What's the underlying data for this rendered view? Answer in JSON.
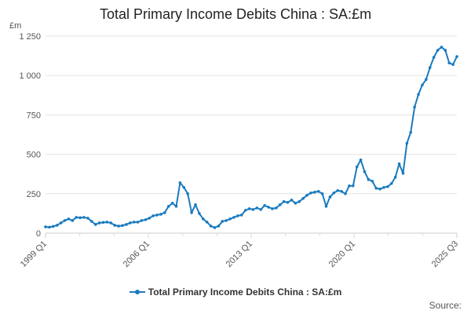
{
  "chart_data": {
    "type": "line",
    "title": "Total Primary Income Debits China : SA:£m",
    "unit": "£m",
    "ylim": [
      0,
      1250
    ],
    "yticks": [
      0,
      250,
      500,
      750,
      1000,
      1250
    ],
    "ytick_labels": [
      "0",
      "250",
      "500",
      "750",
      "1 000",
      "1 250"
    ],
    "xtick_labels": [
      "1999 Q1",
      "2006 Q1",
      "2013 Q1",
      "2020 Q1",
      "2025 Q3"
    ],
    "grid": true,
    "legend_position": "bottom",
    "color": "#1a7bbf",
    "series": [
      {
        "name": "Total Primary Income Debits China : SA:£m",
        "values": [
          40,
          38,
          43,
          50,
          65,
          80,
          90,
          80,
          100,
          98,
          100,
          95,
          75,
          55,
          65,
          68,
          70,
          65,
          50,
          45,
          48,
          55,
          65,
          70,
          70,
          80,
          85,
          95,
          110,
          115,
          120,
          130,
          170,
          190,
          170,
          320,
          290,
          250,
          130,
          180,
          125,
          90,
          70,
          45,
          35,
          45,
          75,
          80,
          90,
          100,
          110,
          115,
          145,
          155,
          150,
          160,
          150,
          175,
          165,
          155,
          160,
          180,
          200,
          195,
          210,
          190,
          200,
          220,
          240,
          255,
          260,
          265,
          250,
          170,
          230,
          255,
          270,
          265,
          250,
          300,
          300,
          420,
          465,
          390,
          340,
          330,
          285,
          280,
          290,
          295,
          315,
          355,
          440,
          380,
          570,
          640,
          800,
          880,
          940,
          975,
          1050,
          1115,
          1160,
          1180,
          1160,
          1080,
          1070,
          1120
        ]
      }
    ]
  },
  "legend": {
    "label": "Total Primary Income Debits China : SA:£m"
  },
  "footer": {
    "source_label": "Source:"
  }
}
